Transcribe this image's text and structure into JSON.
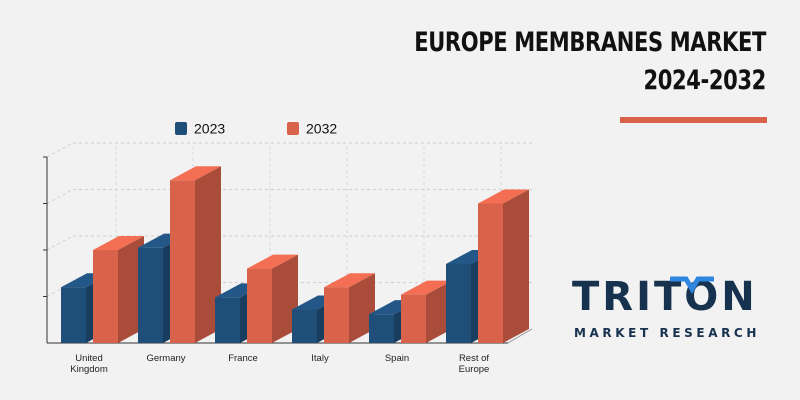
{
  "header": {
    "title_line1": "EUROPE MEMBRANES MARKET",
    "title_line2": "2024-2032",
    "accent_color": "#d9624a"
  },
  "logo": {
    "word": "TRITON",
    "tagline": "MARKET RESEARCH",
    "color": "#16324f",
    "accent_color": "#2f86e0"
  },
  "chart_data": {
    "type": "bar",
    "categories": [
      "United Kingdom",
      "Germany",
      "France",
      "Italy",
      "Spain",
      "Rest of Europe"
    ],
    "series": [
      {
        "name": "2023",
        "color": "#1f4e79",
        "values": [
          1.2,
          2.05,
          0.98,
          0.72,
          0.62,
          1.7
        ]
      },
      {
        "name": "2032",
        "color": "#d9624a",
        "values": [
          2.0,
          3.5,
          1.6,
          1.2,
          1.04,
          3.0
        ]
      }
    ],
    "ylim": [
      0,
      4
    ],
    "grid": true,
    "legend": "top"
  }
}
